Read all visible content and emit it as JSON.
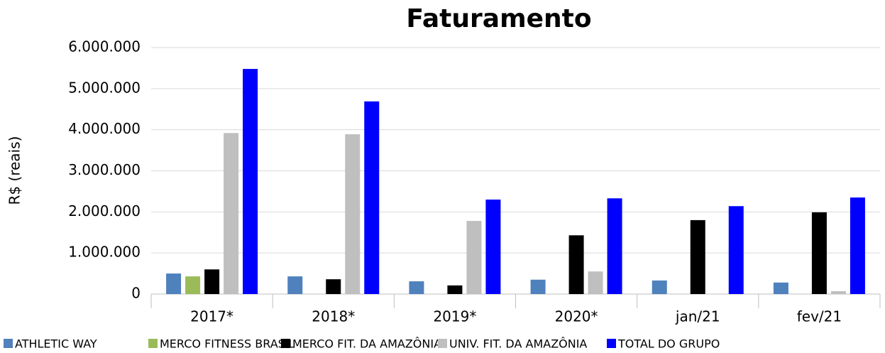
{
  "chart_data": {
    "type": "bar",
    "title": "Faturamento",
    "y_label": "R$ (reais)",
    "categories": [
      "2017*",
      "2018*",
      "2019*",
      "2020*",
      "jan/21",
      "fev/21"
    ],
    "series": [
      {
        "name": "ATHLETIC WAY",
        "color": "#4f81bd",
        "values": [
          500000,
          430000,
          310000,
          350000,
          330000,
          280000
        ]
      },
      {
        "name": "MERCO FITNESS BRASIL",
        "color": "#9bbb59",
        "values": [
          430000,
          0,
          0,
          0,
          0,
          0
        ]
      },
      {
        "name": "MERCO FIT. DA AMAZÔNIA",
        "color": "#000000",
        "values": [
          600000,
          360000,
          210000,
          1430000,
          1800000,
          1990000
        ]
      },
      {
        "name": "UNIV. FIT. DA AMAZÔNIA",
        "color": "#bfbfbf",
        "values": [
          3920000,
          3890000,
          1780000,
          550000,
          0,
          70000
        ]
      },
      {
        "name": "TOTAL DO GRUPO",
        "color": "#0000ff",
        "values": [
          5480000,
          4690000,
          2300000,
          2330000,
          2140000,
          2350000
        ]
      }
    ],
    "ylim": [
      0,
      6000000
    ],
    "yticks": [
      0,
      {
        "value": 1000000,
        "label": "1.000.000"
      },
      {
        "value": 2000000,
        "label": "2.000.000"
      },
      {
        "value": 3000000,
        "label": "3.000.000"
      },
      {
        "value": 4000000,
        "label": "4.000.000"
      },
      {
        "value": 5000000,
        "label": "5.000.000"
      },
      {
        "value": 6000000,
        "label": "6.000.000"
      }
    ],
    "grid": true,
    "legend": "bottom"
  }
}
